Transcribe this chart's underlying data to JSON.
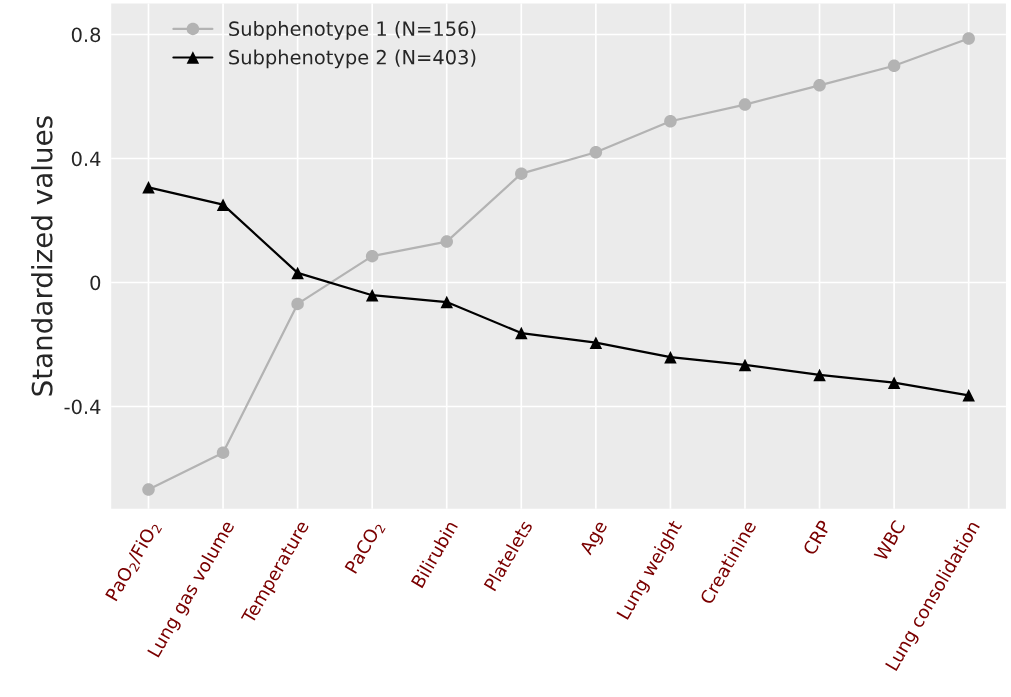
{
  "chart_data": {
    "type": "line",
    "ylabel": "Standardized values",
    "categories": [
      "PaO$_{2}$/FiO$_{2}$",
      "Lung gas volume",
      "Temperature",
      "PaCO$_{2}$",
      "Bilirubin",
      "Platelets",
      "Age",
      "Lung weight",
      "Creatinine",
      "CRP",
      "WBC",
      "Lung consolidation"
    ],
    "series": [
      {
        "name": "Subphenotype 1 (N=156)",
        "color": "#b3b3b3",
        "marker": "circle",
        "values": [
          -0.668,
          -0.549,
          -0.069,
          0.085,
          0.132,
          0.351,
          0.42,
          0.52,
          0.574,
          0.636,
          0.699,
          0.787
        ]
      },
      {
        "name": "Subphenotype 2 (N=403)",
        "color": "#000000",
        "marker": "triangle",
        "values": [
          0.307,
          0.251,
          0.031,
          -0.041,
          -0.063,
          -0.163,
          -0.194,
          -0.241,
          -0.266,
          -0.298,
          -0.323,
          -0.364
        ]
      }
    ],
    "ylim": [
      -0.73,
      0.9
    ],
    "yticks": [
      {
        "value": 0.8,
        "label": "0.8"
      },
      {
        "value": 0.4,
        "label": "0.4"
      },
      0,
      {
        "value": -0.4,
        "label": "-0.4"
      }
    ],
    "grid": true,
    "legend": "top left"
  }
}
